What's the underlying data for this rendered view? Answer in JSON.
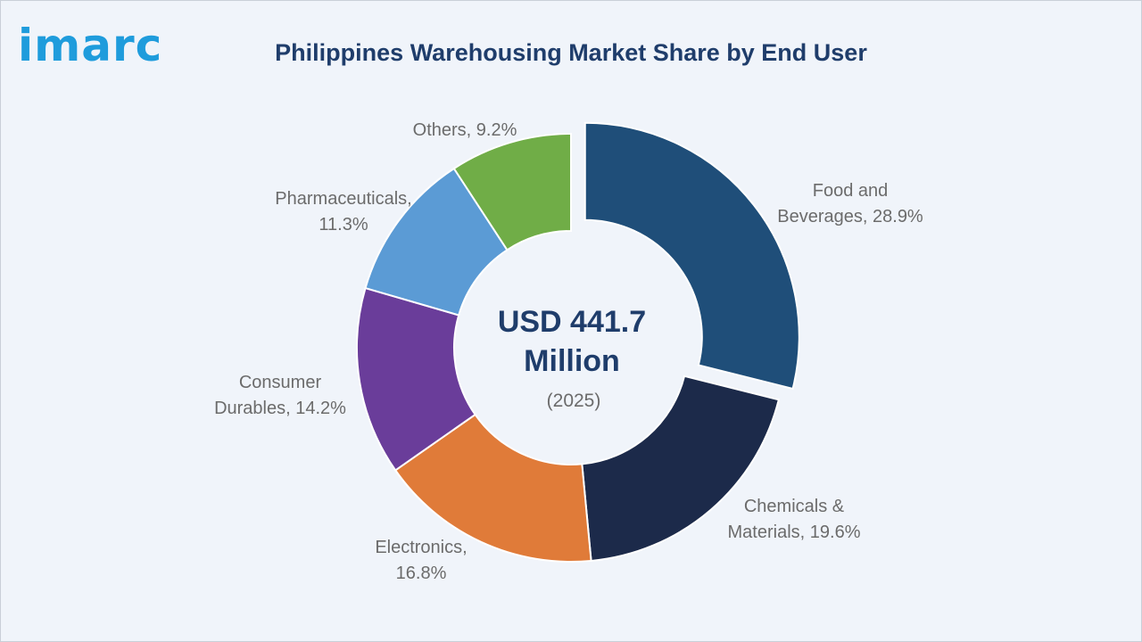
{
  "brand": {
    "logo_text": "imarc",
    "logo_color": "#1f9cdc"
  },
  "chart_data": {
    "type": "pie",
    "title": "Philippines Warehousing Market Share by End User",
    "center": {
      "value_line1": "USD 441.7",
      "value_line2": "Million",
      "year": "(2025)"
    },
    "categories": [
      "Food and Beverages",
      "Chemicals & Materials",
      "Electronics",
      "Consumer Durables",
      "Pharmaceuticals",
      "Others"
    ],
    "values": [
      28.9,
      19.6,
      16.8,
      14.2,
      11.3,
      9.2
    ],
    "labels": [
      [
        "Food and",
        "Beverages, 28.9%"
      ],
      [
        "Chemicals &",
        "Materials, 19.6%"
      ],
      [
        "Electronics,",
        "16.8%"
      ],
      [
        "Consumer",
        "Durables, 14.2%"
      ],
      [
        "Pharmaceuticals,",
        "11.3%"
      ],
      [
        "Others, 9.2%"
      ]
    ],
    "colors": [
      "#1f4e79",
      "#1c2a4a",
      "#e07b39",
      "#6a3d9a",
      "#5b9bd5",
      "#70ad47"
    ],
    "exploded": [
      "Food and Beverages"
    ],
    "legend": "none"
  }
}
